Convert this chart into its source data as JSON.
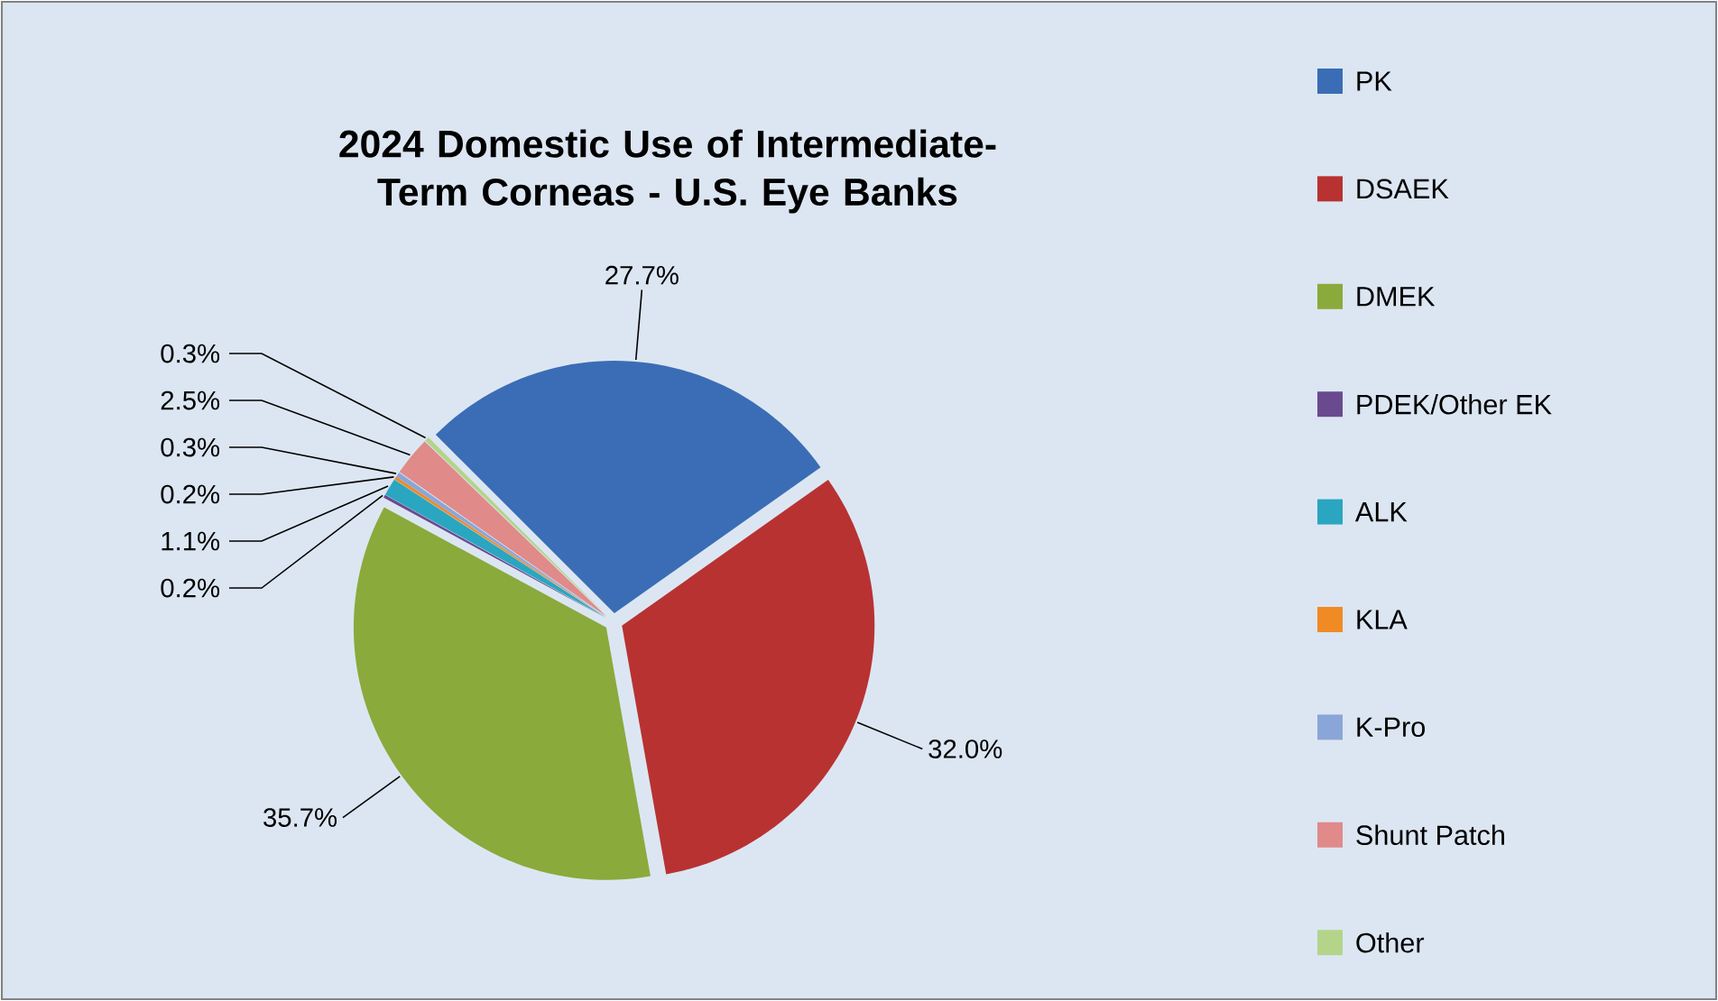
{
  "chart_data": {
    "type": "pie",
    "title": "2024 Domestic Use of Intermediate-Term Corneas - U.S. Eye Banks",
    "categories": [
      "PK",
      "DSAEK",
      "DMEK",
      "PDEK/Other EK",
      "ALK",
      "KLA",
      "K-Pro",
      "Shunt Patch",
      "Other"
    ],
    "values": [
      27.7,
      32.0,
      35.7,
      0.2,
      1.1,
      0.2,
      0.3,
      2.5,
      0.3
    ],
    "value_labels": [
      "27.7%",
      "32.0%",
      "35.7%",
      "0.2%",
      "1.1%",
      "0.2%",
      "0.3%",
      "2.5%",
      "0.3%"
    ],
    "colors": [
      "#3a6db5",
      "#b83232",
      "#8aaa3c",
      "#6a4a8f",
      "#2aa6c0",
      "#f08a24",
      "#8aa6d8",
      "#e08a8a",
      "#b4d48a"
    ],
    "legend": "right"
  }
}
